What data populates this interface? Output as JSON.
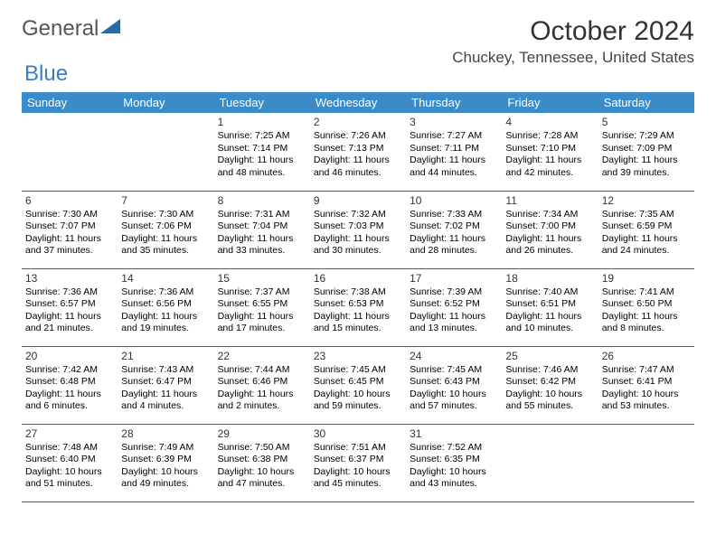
{
  "logo": {
    "word1": "General",
    "word2": "Blue"
  },
  "month_title": "October 2024",
  "location": "Chuckey, Tennessee, United States",
  "colors": {
    "header_bg": "#3b8bc9",
    "header_text": "#ffffff",
    "cell_border": "#2a6aa0",
    "logo_triangle": "#2a6aa0"
  },
  "day_headers": [
    "Sunday",
    "Monday",
    "Tuesday",
    "Wednesday",
    "Thursday",
    "Friday",
    "Saturday"
  ],
  "weeks": [
    [
      null,
      null,
      {
        "n": "1",
        "sr": "Sunrise: 7:25 AM",
        "ss": "Sunset: 7:14 PM",
        "dl": "Daylight: 11 hours and 48 minutes."
      },
      {
        "n": "2",
        "sr": "Sunrise: 7:26 AM",
        "ss": "Sunset: 7:13 PM",
        "dl": "Daylight: 11 hours and 46 minutes."
      },
      {
        "n": "3",
        "sr": "Sunrise: 7:27 AM",
        "ss": "Sunset: 7:11 PM",
        "dl": "Daylight: 11 hours and 44 minutes."
      },
      {
        "n": "4",
        "sr": "Sunrise: 7:28 AM",
        "ss": "Sunset: 7:10 PM",
        "dl": "Daylight: 11 hours and 42 minutes."
      },
      {
        "n": "5",
        "sr": "Sunrise: 7:29 AM",
        "ss": "Sunset: 7:09 PM",
        "dl": "Daylight: 11 hours and 39 minutes."
      }
    ],
    [
      {
        "n": "6",
        "sr": "Sunrise: 7:30 AM",
        "ss": "Sunset: 7:07 PM",
        "dl": "Daylight: 11 hours and 37 minutes."
      },
      {
        "n": "7",
        "sr": "Sunrise: 7:30 AM",
        "ss": "Sunset: 7:06 PM",
        "dl": "Daylight: 11 hours and 35 minutes."
      },
      {
        "n": "8",
        "sr": "Sunrise: 7:31 AM",
        "ss": "Sunset: 7:04 PM",
        "dl": "Daylight: 11 hours and 33 minutes."
      },
      {
        "n": "9",
        "sr": "Sunrise: 7:32 AM",
        "ss": "Sunset: 7:03 PM",
        "dl": "Daylight: 11 hours and 30 minutes."
      },
      {
        "n": "10",
        "sr": "Sunrise: 7:33 AM",
        "ss": "Sunset: 7:02 PM",
        "dl": "Daylight: 11 hours and 28 minutes."
      },
      {
        "n": "11",
        "sr": "Sunrise: 7:34 AM",
        "ss": "Sunset: 7:00 PM",
        "dl": "Daylight: 11 hours and 26 minutes."
      },
      {
        "n": "12",
        "sr": "Sunrise: 7:35 AM",
        "ss": "Sunset: 6:59 PM",
        "dl": "Daylight: 11 hours and 24 minutes."
      }
    ],
    [
      {
        "n": "13",
        "sr": "Sunrise: 7:36 AM",
        "ss": "Sunset: 6:57 PM",
        "dl": "Daylight: 11 hours and 21 minutes."
      },
      {
        "n": "14",
        "sr": "Sunrise: 7:36 AM",
        "ss": "Sunset: 6:56 PM",
        "dl": "Daylight: 11 hours and 19 minutes."
      },
      {
        "n": "15",
        "sr": "Sunrise: 7:37 AM",
        "ss": "Sunset: 6:55 PM",
        "dl": "Daylight: 11 hours and 17 minutes."
      },
      {
        "n": "16",
        "sr": "Sunrise: 7:38 AM",
        "ss": "Sunset: 6:53 PM",
        "dl": "Daylight: 11 hours and 15 minutes."
      },
      {
        "n": "17",
        "sr": "Sunrise: 7:39 AM",
        "ss": "Sunset: 6:52 PM",
        "dl": "Daylight: 11 hours and 13 minutes."
      },
      {
        "n": "18",
        "sr": "Sunrise: 7:40 AM",
        "ss": "Sunset: 6:51 PM",
        "dl": "Daylight: 11 hours and 10 minutes."
      },
      {
        "n": "19",
        "sr": "Sunrise: 7:41 AM",
        "ss": "Sunset: 6:50 PM",
        "dl": "Daylight: 11 hours and 8 minutes."
      }
    ],
    [
      {
        "n": "20",
        "sr": "Sunrise: 7:42 AM",
        "ss": "Sunset: 6:48 PM",
        "dl": "Daylight: 11 hours and 6 minutes."
      },
      {
        "n": "21",
        "sr": "Sunrise: 7:43 AM",
        "ss": "Sunset: 6:47 PM",
        "dl": "Daylight: 11 hours and 4 minutes."
      },
      {
        "n": "22",
        "sr": "Sunrise: 7:44 AM",
        "ss": "Sunset: 6:46 PM",
        "dl": "Daylight: 11 hours and 2 minutes."
      },
      {
        "n": "23",
        "sr": "Sunrise: 7:45 AM",
        "ss": "Sunset: 6:45 PM",
        "dl": "Daylight: 10 hours and 59 minutes."
      },
      {
        "n": "24",
        "sr": "Sunrise: 7:45 AM",
        "ss": "Sunset: 6:43 PM",
        "dl": "Daylight: 10 hours and 57 minutes."
      },
      {
        "n": "25",
        "sr": "Sunrise: 7:46 AM",
        "ss": "Sunset: 6:42 PM",
        "dl": "Daylight: 10 hours and 55 minutes."
      },
      {
        "n": "26",
        "sr": "Sunrise: 7:47 AM",
        "ss": "Sunset: 6:41 PM",
        "dl": "Daylight: 10 hours and 53 minutes."
      }
    ],
    [
      {
        "n": "27",
        "sr": "Sunrise: 7:48 AM",
        "ss": "Sunset: 6:40 PM",
        "dl": "Daylight: 10 hours and 51 minutes."
      },
      {
        "n": "28",
        "sr": "Sunrise: 7:49 AM",
        "ss": "Sunset: 6:39 PM",
        "dl": "Daylight: 10 hours and 49 minutes."
      },
      {
        "n": "29",
        "sr": "Sunrise: 7:50 AM",
        "ss": "Sunset: 6:38 PM",
        "dl": "Daylight: 10 hours and 47 minutes."
      },
      {
        "n": "30",
        "sr": "Sunrise: 7:51 AM",
        "ss": "Sunset: 6:37 PM",
        "dl": "Daylight: 10 hours and 45 minutes."
      },
      {
        "n": "31",
        "sr": "Sunrise: 7:52 AM",
        "ss": "Sunset: 6:35 PM",
        "dl": "Daylight: 10 hours and 43 minutes."
      },
      null,
      null
    ]
  ]
}
